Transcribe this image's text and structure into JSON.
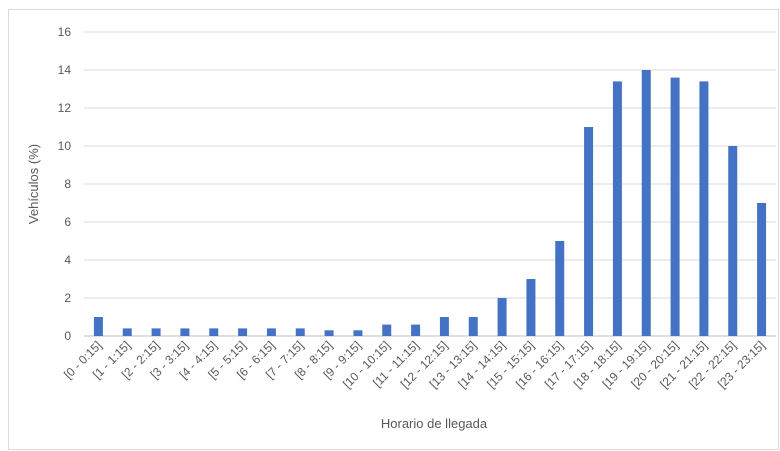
{
  "chart_data": {
    "type": "bar",
    "title": "",
    "xlabel": "Horario de llegada",
    "ylabel": "Vehículos (%)",
    "ylim": [
      0,
      16
    ],
    "yticks": [
      "0",
      "2",
      "4",
      "6",
      "8",
      "10",
      "12",
      "14",
      "16"
    ],
    "grid": true,
    "legend": "none",
    "bar_color": "#4472c4",
    "categories": [
      "[0 - 0:15]",
      "[1 - 1:15]",
      "[2 - 2:15]",
      "[3 - 3:15]",
      "[4 - 4:15]",
      "[5 - 5:15]",
      "[6 - 6:15]",
      "[7 - 7:15]",
      "[8 - 8:15]",
      "[9 - 9:15]",
      "[10 - 10:15]",
      "[11 - 11:15]",
      "[12 - 12:15]",
      "[13 - 13:15]",
      "[14 - 14:15]",
      "[15 - 15:15]",
      "[16 - 16:15]",
      "[17 - 17:15]",
      "[18 - 18:15]",
      "[19 - 19:15]",
      "[20 - 20:15]",
      "[21 - 21:15]",
      "[22 - 22:15]",
      "[23 - 23:15]"
    ],
    "values": [
      1,
      0.4,
      0.4,
      0.4,
      0.4,
      0.4,
      0.4,
      0.4,
      0.3,
      0.3,
      0.6,
      0.6,
      1,
      1,
      2,
      3,
      5,
      11,
      13.4,
      14,
      13.6,
      13.4,
      10,
      7
    ]
  }
}
